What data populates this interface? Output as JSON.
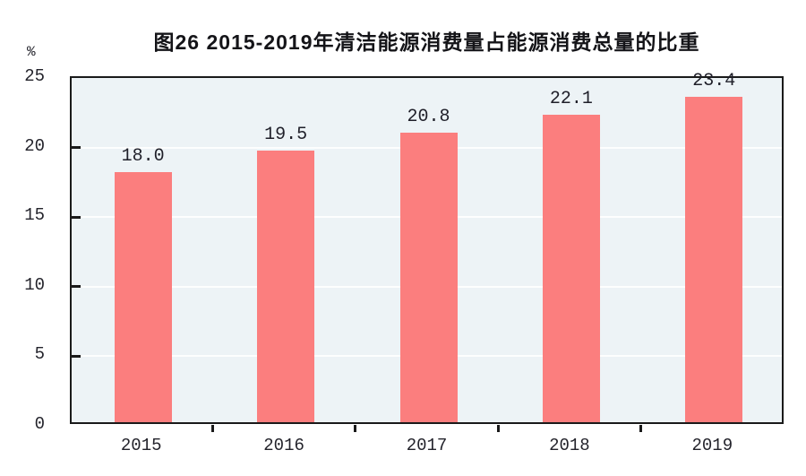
{
  "chart_data": {
    "type": "bar",
    "title": "图26  2015-2019年清洁能源消费量占能源消费总量的比重",
    "unit_label": "%",
    "categories": [
      "2015",
      "2016",
      "2017",
      "2018",
      "2019"
    ],
    "values": [
      18.0,
      19.5,
      20.8,
      22.1,
      23.4
    ],
    "data_labels": [
      "18.0",
      "19.5",
      "20.8",
      "22.1",
      "23.4"
    ],
    "ylabel": "%",
    "xlabel": "",
    "ylim": [
      0,
      25
    ],
    "y_ticks": [
      0,
      5,
      10,
      15,
      20,
      25
    ],
    "grid": true,
    "legend": "none",
    "colors": {
      "bar": "#fb7e7e",
      "plot_background": "#edf3f6",
      "gridline": "#fbfdfe",
      "border": "#1a1a1a",
      "text": "#23232b",
      "title_text": "#141418"
    }
  }
}
